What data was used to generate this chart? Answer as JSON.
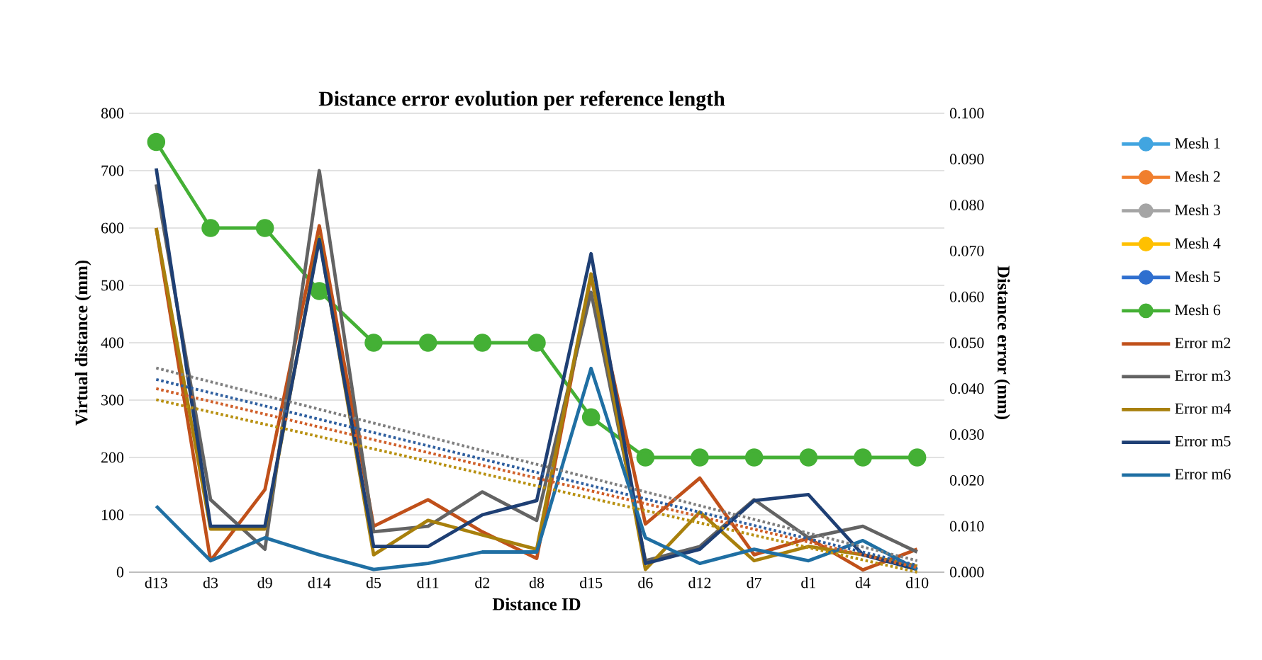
{
  "chart_data": {
    "type": "line",
    "title": "Distance error evolution per reference length",
    "xlabel": "Distance ID",
    "ylabel": "Virtual distance  (mm)",
    "y2label": "Distance error (mm)",
    "categories": [
      "d13",
      "d3",
      "d9",
      "d14",
      "d5",
      "d11",
      "d2",
      "d8",
      "d15",
      "d6",
      "d12",
      "d7",
      "d1",
      "d4",
      "d10"
    ],
    "ylim": [
      0,
      800
    ],
    "yticks": [
      0,
      100,
      200,
      300,
      400,
      500,
      600,
      700,
      800
    ],
    "y2lim": [
      0,
      0.1
    ],
    "y2ticks": [
      {
        "value": 0,
        "label": "0.000"
      },
      {
        "value": 0.01,
        "label": "0.010"
      },
      {
        "value": 0.02,
        "label": "0.020"
      },
      {
        "value": 0.03,
        "label": "0.030"
      },
      {
        "value": 0.04,
        "label": "0.040"
      },
      {
        "value": 0.05,
        "label": "0.050"
      },
      {
        "value": 0.06,
        "label": "0.060"
      },
      {
        "value": 0.07,
        "label": "0.070"
      },
      {
        "value": 0.08,
        "label": "0.080"
      },
      {
        "value": 0.09,
        "label": "0.090"
      },
      {
        "value": 0.1,
        "label": "0.100"
      }
    ],
    "grid": "y",
    "legend": "right",
    "series": [
      {
        "name": "Mesh 1",
        "color": "#41a5e0",
        "marker": "circle",
        "values": [
          null,
          null,
          null,
          null,
          null,
          null,
          null,
          null,
          null,
          null,
          null,
          null,
          null,
          null,
          null
        ]
      },
      {
        "name": "Mesh 2",
        "color": "#f07f2e",
        "marker": "circle",
        "values": [
          null,
          null,
          null,
          null,
          null,
          null,
          null,
          null,
          null,
          null,
          null,
          null,
          null,
          null,
          null
        ]
      },
      {
        "name": "Mesh 3",
        "color": "#a5a5a5",
        "marker": "circle",
        "values": [
          null,
          null,
          null,
          null,
          null,
          null,
          null,
          null,
          null,
          null,
          null,
          null,
          null,
          null,
          null
        ]
      },
      {
        "name": "Mesh 4",
        "color": "#ffc000",
        "marker": "circle",
        "values": [
          null,
          null,
          null,
          null,
          null,
          null,
          null,
          null,
          null,
          null,
          null,
          null,
          null,
          null,
          null
        ]
      },
      {
        "name": "Mesh 5",
        "color": "#2f6fcf",
        "marker": "circle",
        "values": [
          null,
          null,
          null,
          null,
          null,
          null,
          null,
          null,
          null,
          null,
          null,
          null,
          null,
          null,
          null
        ]
      },
      {
        "name": "Mesh 6",
        "color": "#44b035",
        "marker": "circle",
        "values": [
          750,
          600,
          600,
          490,
          400,
          400,
          400,
          400,
          270,
          200,
          200,
          200,
          200,
          200,
          200
        ]
      },
      {
        "name": "Error m2",
        "color": "#c0501a",
        "axis": "y2",
        "values": [
          0.075,
          0.0025,
          0.018,
          0.0755,
          0.01,
          0.0158,
          0.0088,
          0.003,
          0.0645,
          0.0105,
          0.0205,
          0.0038,
          0.0074,
          0.0005,
          0.005
        ]
      },
      {
        "name": "Error m3",
        "color": "#636363",
        "axis": "y2",
        "values": [
          0.0845,
          0.0158,
          0.005,
          0.0875,
          0.0088,
          0.01,
          0.0175,
          0.0113,
          0.061,
          0.0025,
          0.0056,
          0.0158,
          0.0075,
          0.01,
          0.0044
        ]
      },
      {
        "name": "Error m4",
        "color": "#a8800c",
        "axis": "y2",
        "values": [
          0.075,
          0.0094,
          0.0094,
          0.073,
          0.0038,
          0.0113,
          0.0081,
          0.005,
          0.065,
          0.0006,
          0.0131,
          0.0025,
          0.0056,
          0.0038,
          0.0013
        ]
      },
      {
        "name": "Error m5",
        "color": "#1e3f74",
        "axis": "y2",
        "values": [
          0.088,
          0.01,
          0.01,
          0.0725,
          0.0056,
          0.0056,
          0.0125,
          0.0156,
          0.0694,
          0.0019,
          0.005,
          0.0156,
          0.0169,
          0.0038,
          0.0006
        ]
      },
      {
        "name": "Error m6",
        "color": "#1f6fa3",
        "axis": "y2",
        "values": [
          0.0144,
          0.0025,
          0.0075,
          0.0038,
          0.0006,
          0.0019,
          0.0044,
          0.0044,
          0.0444,
          0.0075,
          0.0019,
          0.005,
          0.0025,
          0.0069,
          0.0006
        ]
      },
      {
        "color": "#7f7f7f",
        "axis": "y2",
        "line_style": "dotted",
        "x": [
          "d13",
          "d10"
        ],
        "values": [
          0.0445,
          0.0025
        ]
      },
      {
        "color": "#2f5f9f",
        "axis": "y2",
        "line_style": "dotted",
        "x": [
          "d13",
          "d10"
        ],
        "values": [
          0.042,
          0.0015
        ]
      },
      {
        "color": "#d0602a",
        "axis": "y2",
        "line_style": "dotted",
        "x": [
          "d13",
          "d10"
        ],
        "values": [
          0.04,
          0.001
        ]
      },
      {
        "color": "#b89010",
        "axis": "y2",
        "line_style": "dotted",
        "x": [
          "d13",
          "d10"
        ],
        "values": [
          0.0376,
          0.0
        ]
      }
    ]
  }
}
